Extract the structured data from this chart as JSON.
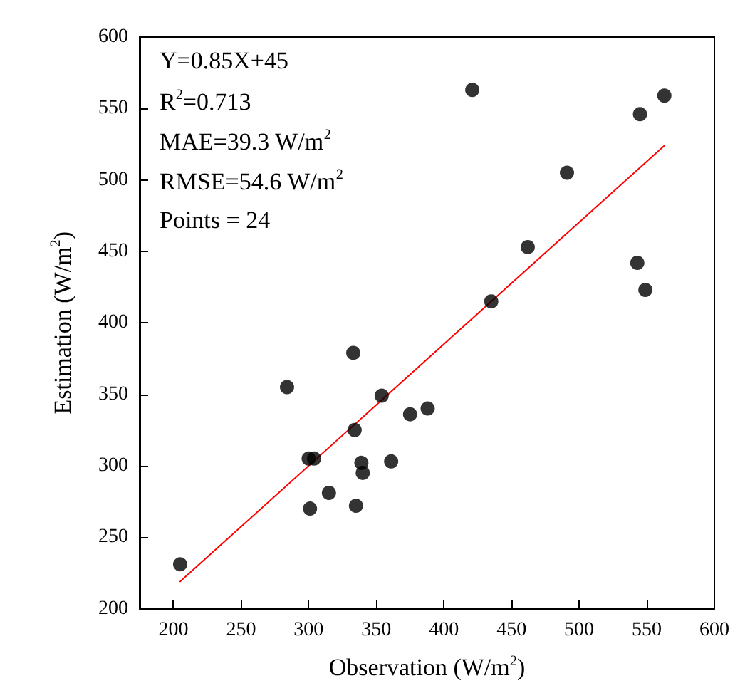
{
  "chart_data": {
    "type": "scatter",
    "xlabel": "Observation (W/m$^{2}$)",
    "ylabel": "Estimation (W/m$^{2}$)",
    "xlim": [
      175,
      600
    ],
    "xticks": [
      200,
      250,
      300,
      350,
      400,
      450,
      500,
      550,
      600
    ],
    "ylim": [
      200,
      600
    ],
    "yticks": [
      200,
      250,
      300,
      350,
      400,
      450,
      500,
      550,
      600
    ],
    "grid": false,
    "marker": "circle",
    "annotations": [
      "Y=0.85X+45",
      "R$^{2}$=0.713",
      "MAE=39.3 W/m$^{2}$",
      "RMSE=54.6 W/m$^{2}$",
      "Points = 24"
    ],
    "series": [
      {
        "color": "#000000",
        "x": [
          205,
          284,
          301,
          300,
          304,
          315,
          333,
          334,
          335,
          339,
          340,
          354,
          361,
          375,
          388,
          421,
          435,
          462,
          491,
          543,
          545,
          549,
          563
        ],
        "values": [
          231,
          355,
          270,
          305,
          305,
          281,
          379,
          325,
          272,
          302,
          295,
          349,
          303,
          336,
          340,
          563,
          415,
          453,
          505,
          442,
          546,
          423,
          559
        ]
      },
      {
        "type": "line",
        "color": "#ff0000",
        "line_style": "solid",
        "marker": "none",
        "x": [
          205,
          563
        ],
        "values": [
          219,
          524
        ]
      }
    ]
  }
}
